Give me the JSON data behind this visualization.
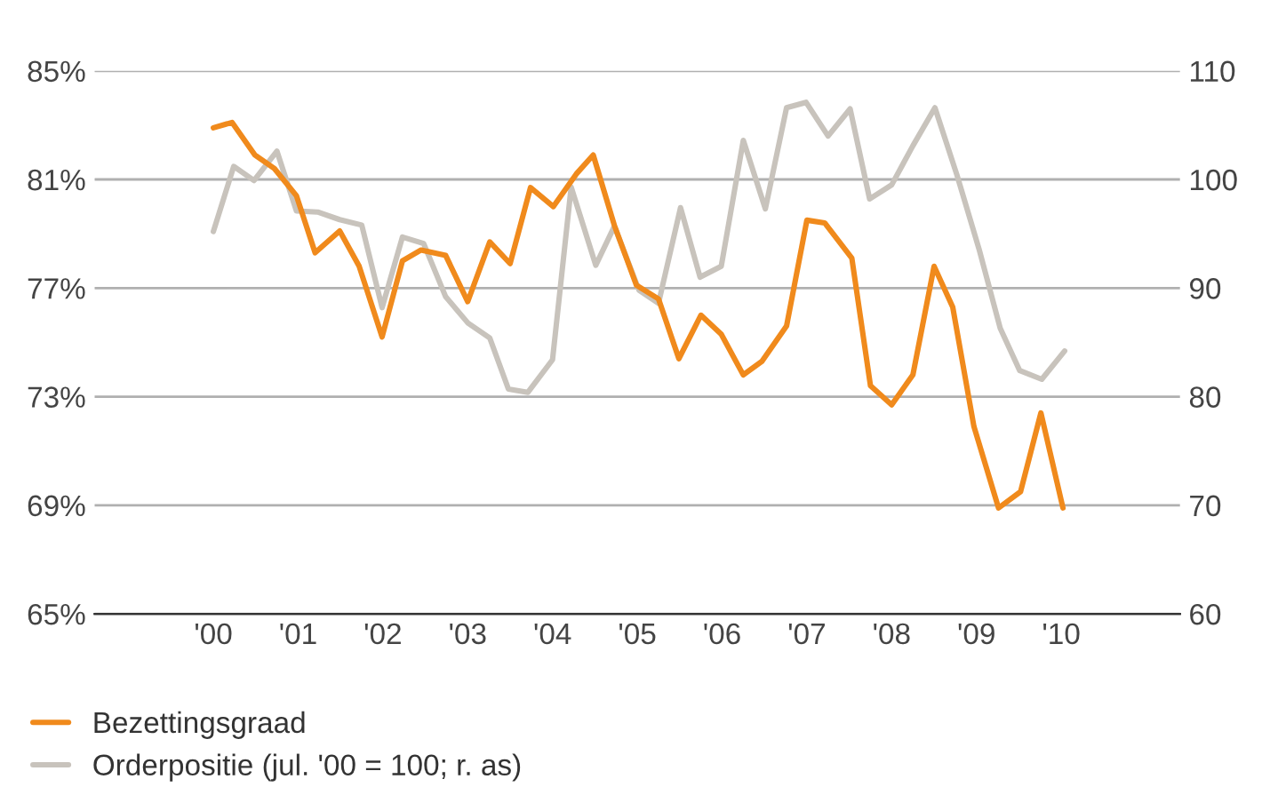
{
  "chart_data": {
    "type": "line",
    "x": [
      2000.0,
      2000.22,
      2000.49,
      2000.72,
      2000.98,
      2001.2,
      2001.49,
      2001.72,
      2001.99,
      2002.23,
      2002.45,
      2002.74,
      2003.0,
      2003.26,
      2003.5,
      2003.74,
      2004.01,
      2004.28,
      2004.48,
      2004.73,
      2004.99,
      2005.25,
      2005.49,
      2005.75,
      2005.99,
      2006.25,
      2006.47,
      2006.76,
      2007.0,
      2007.21,
      2007.53,
      2007.75,
      2008.0,
      2008.25,
      2008.5,
      2008.72,
      2008.97,
      2009.26,
      2009.52,
      2009.76,
      2010.02
    ],
    "series": [
      {
        "name": "Bezettingsgraad",
        "color": "#f08a1c",
        "values": [
          82.9,
          83.1,
          81.9,
          81.4,
          80.4,
          78.3,
          79.1,
          77.8,
          75.2,
          78.0,
          78.4,
          78.2,
          76.5,
          78.7,
          77.9,
          80.7,
          80.0,
          81.2,
          81.9,
          79.3,
          77.1,
          76.6,
          74.4,
          76.0,
          75.3,
          73.8,
          74.3,
          75.6,
          79.5,
          79.4,
          78.1,
          73.4,
          72.7,
          73.8,
          77.8,
          76.3,
          71.9,
          68.9,
          69.5,
          72.4,
          68.9
        ]
      },
      {
        "name": "Orderpositie (jul. '00 = 100; r. as)",
        "color": "#c8c3bc",
        "axis": "y2",
        "x": [
          2000.0,
          2000.24,
          2000.48,
          2000.75,
          2000.98,
          2001.23,
          2001.49,
          2001.75,
          2001.99,
          2002.23,
          2002.48,
          2002.74,
          2003.0,
          2003.26,
          2003.48,
          2003.71,
          2004.0,
          2004.22,
          2004.51,
          2004.73,
          2005.02,
          2005.25,
          2005.51,
          2005.74,
          2005.99,
          2006.25,
          2006.51,
          2006.76,
          2006.99,
          2007.25,
          2007.51,
          2007.74,
          2008.0,
          2008.25,
          2008.51,
          2008.77,
          2009.03,
          2009.28,
          2009.51,
          2009.77,
          2010.04
        ],
        "values": [
          95.2,
          101.2,
          99.9,
          102.6,
          97.1,
          97.0,
          96.3,
          95.8,
          88.2,
          94.7,
          94.1,
          89.2,
          86.8,
          85.4,
          80.7,
          80.4,
          83.4,
          99.3,
          92.1,
          95.7,
          89.8,
          88.6,
          97.4,
          91.0,
          92.0,
          103.6,
          97.3,
          106.6,
          107.1,
          104.0,
          106.5,
          98.2,
          99.5,
          103.1,
          106.6,
          100.4,
          93.6,
          86.3,
          82.4,
          81.6,
          84.2
        ]
      }
    ],
    "xlim": [
      1998.6,
      2011.4
    ],
    "xticks": [
      {
        "value": 2000,
        "label": "'00"
      },
      {
        "value": 2001,
        "label": "'01"
      },
      {
        "value": 2002,
        "label": "'02"
      },
      {
        "value": 2003,
        "label": "'03"
      },
      {
        "value": 2004,
        "label": "'04"
      },
      {
        "value": 2005,
        "label": "'05"
      },
      {
        "value": 2006,
        "label": "'06"
      },
      {
        "value": 2007,
        "label": "'07"
      },
      {
        "value": 2008,
        "label": "'08"
      },
      {
        "value": 2009,
        "label": "'09"
      },
      {
        "value": 2010,
        "label": "'10"
      }
    ],
    "ylim": [
      65,
      85
    ],
    "yticks": [
      {
        "value": 65,
        "label": "65%"
      },
      {
        "value": 69,
        "label": "69%"
      },
      {
        "value": 73,
        "label": "73%"
      },
      {
        "value": 77,
        "label": "77%"
      },
      {
        "value": 81,
        "label": "81%"
      },
      {
        "value": 85,
        "label": "85%"
      }
    ],
    "y2lim": [
      60,
      110
    ],
    "y2ticks": [
      60,
      70,
      80,
      90,
      100,
      110
    ],
    "grid": "y",
    "legend": "bottom",
    "marker": "none",
    "line_style": "solid"
  }
}
